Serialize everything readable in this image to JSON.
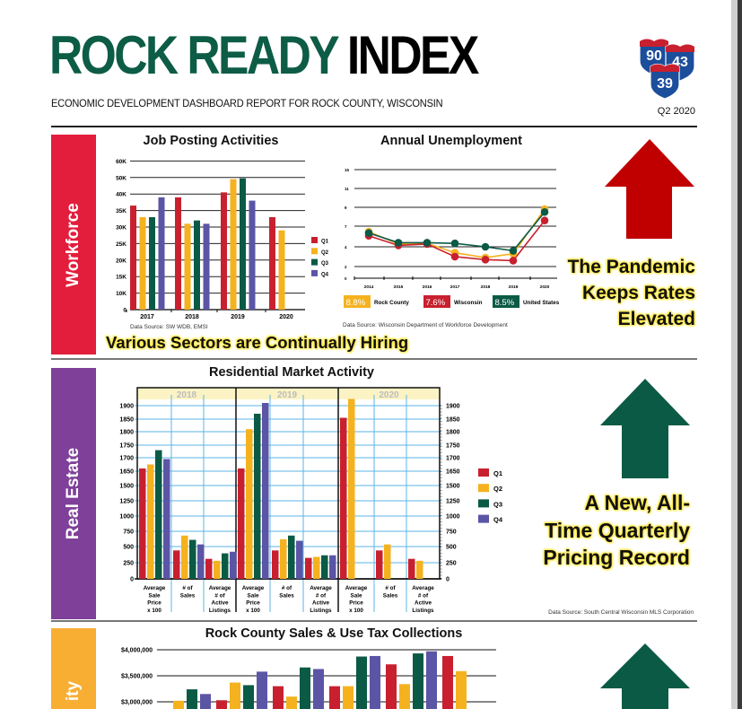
{
  "header": {
    "title_part1": "ROCK READY",
    "title_part2": "INDEX",
    "subtitle": "ECONOMIC DEVELOPMENT DASHBOARD REPORT FOR ROCK COUNTY, WISCONSIN",
    "quarter": "Q2 2020",
    "logo_numbers": [
      "90",
      "43",
      "39"
    ]
  },
  "colors": {
    "green_brand": "#0d5c46",
    "q1": "#c8202f",
    "q2": "#f5b21f",
    "q3": "#0b5a45",
    "q4": "#5b55a6",
    "workforce": "#e31d3c",
    "real_estate": "#7e4098",
    "third_section": "#f8ae33",
    "arrow_red": "#c00000",
    "arrow_green": "#0b5a45"
  },
  "sections": {
    "workforce": {
      "label": "Workforce",
      "tagline": "Various Sectors are Continually Hiring",
      "callout": [
        "The Pandemic",
        "Keeps Rates",
        "Elevated"
      ],
      "arrow": "up-red"
    },
    "real_estate": {
      "label": "Real Estate",
      "callout": [
        "A New, All-",
        "Time Quarterly",
        "Pricing Record"
      ],
      "source": "Data Source: South Central Wisconsin MLS Corporation",
      "arrow": "up-green"
    },
    "third": {
      "label": "ity",
      "arrow": "up-green"
    }
  },
  "chart_data": [
    {
      "id": "job_postings",
      "type": "bar",
      "title": "Job Posting Activities",
      "source": "Data Source: SW WDB, EMSI",
      "categories": [
        "2017",
        "2018",
        "2019",
        "2020"
      ],
      "yticks": [
        0,
        10,
        15,
        20,
        25,
        30,
        35,
        40,
        50,
        60
      ],
      "ytick_labels": [
        "0",
        "10K",
        "15K",
        "20K",
        "25K",
        "30K",
        "35K",
        "40K",
        "50K",
        "60K"
      ],
      "yunit": "thousands",
      "legend": [
        "Q1",
        "Q2",
        "Q3",
        "Q4"
      ],
      "legend_position": "right",
      "series": [
        {
          "name": "Q1",
          "values": [
            36.5,
            39,
            41,
            33
          ]
        },
        {
          "name": "Q2",
          "values": [
            33,
            31,
            49,
            29
          ]
        },
        {
          "name": "Q3",
          "values": [
            33,
            32,
            49.5,
            null
          ]
        },
        {
          "name": "Q4",
          "values": [
            39,
            31,
            38,
            null
          ]
        }
      ]
    },
    {
      "id": "unemployment",
      "type": "line",
      "title": "Annual Unemployment",
      "source": "Data Source: Wisconsin Department of Workforce Development",
      "x": [
        "2014",
        "2015",
        "2016",
        "2017",
        "2018",
        "2019",
        "2020"
      ],
      "yticks": [
        0,
        2,
        4,
        7,
        9,
        11,
        15
      ],
      "series": [
        {
          "name": "Rock County",
          "latest": "8.8%",
          "values": [
            6.2,
            4.4,
            4.5,
            3.4,
            2.9,
            3.3,
            8.8
          ]
        },
        {
          "name": "Wisconsin",
          "latest": "7.6%",
          "values": [
            5.6,
            4.2,
            4.4,
            3.0,
            2.7,
            2.6,
            7.6
          ]
        },
        {
          "name": "United States",
          "latest": "8.5%",
          "values": [
            6.0,
            4.6,
            4.6,
            4.5,
            4.0,
            3.6,
            8.5
          ]
        }
      ],
      "legend_position": "bottom"
    },
    {
      "id": "residential",
      "type": "bar",
      "title": "Residential Market Activity",
      "years": [
        "2018",
        "2019",
        "2020"
      ],
      "categories": [
        [
          "Average",
          "Sale",
          "Price",
          "x 100"
        ],
        [
          "# of",
          "Sales"
        ],
        [
          "Average",
          "# of",
          "Active",
          "Listings"
        ]
      ],
      "yticks": [
        0,
        250,
        500,
        750,
        1000,
        1250,
        1500,
        1650,
        1700,
        1750,
        1800,
        1850,
        1900
      ],
      "legend": [
        "Q1",
        "Q2",
        "Q3",
        "Q4"
      ],
      "legend_position": "right",
      "values": {
        "2018": [
          [
            1660,
            1675,
            1730,
            1695
          ],
          [
            440,
            680,
            610,
            535
          ],
          [
            310,
            280,
            395,
            420
          ]
        ],
        "2019": [
          [
            1660,
            1810,
            1870,
            1910
          ],
          [
            440,
            620,
            680,
            595
          ],
          [
            325,
            340,
            365,
            365
          ]
        ],
        "2020": [
          [
            1855,
            1925,
            null,
            null
          ],
          [
            440,
            535,
            null,
            null
          ],
          [
            310,
            280,
            null,
            null
          ]
        ]
      }
    },
    {
      "id": "sales_tax",
      "type": "bar",
      "title": "Rock County Sales & Use Tax Collections",
      "ytick_labels": [
        "$4,000,000",
        "$3,500,000",
        "$3,000,000"
      ],
      "yticks": [
        4000000,
        3500000,
        3000000
      ],
      "series_order": [
        "Q1",
        "Q2",
        "Q3",
        "Q4"
      ],
      "groups": [
        [
          null,
          3020000,
          3240000,
          3150000
        ],
        [
          3030000,
          3370000,
          3320000,
          3580000
        ],
        [
          3300000,
          3100000,
          3660000,
          3630000
        ],
        [
          3300000,
          3300000,
          3870000,
          3880000
        ],
        [
          3720000,
          3340000,
          3930000,
          3970000
        ],
        [
          3880000,
          3590000,
          null,
          null
        ]
      ]
    }
  ]
}
